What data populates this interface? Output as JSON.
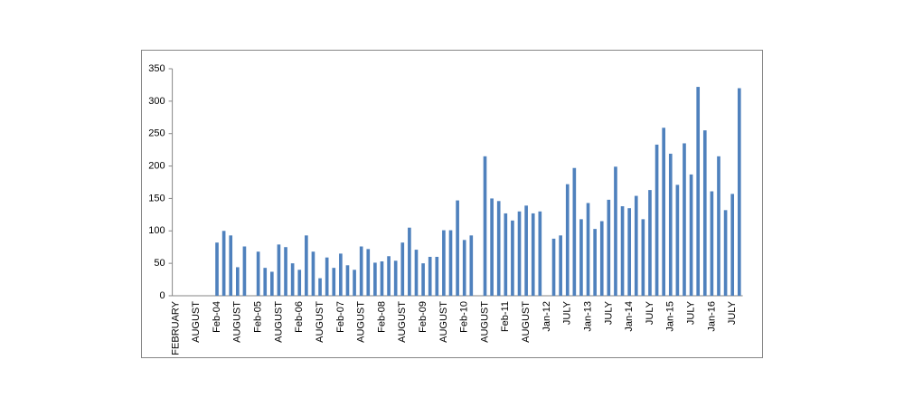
{
  "chart_data": {
    "type": "bar",
    "categories": [
      "FEBRUARY",
      null,
      null,
      "AUGUST",
      null,
      null,
      "Feb-04",
      null,
      null,
      "AUGUST",
      null,
      null,
      "Feb-05",
      null,
      null,
      "AUGUST",
      null,
      null,
      "Feb-06",
      null,
      null,
      "AUGUST",
      null,
      null,
      "Feb-07",
      null,
      null,
      "AUGUST",
      null,
      null,
      "Feb-08",
      null,
      null,
      "AUGUST",
      null,
      null,
      "Feb-09",
      null,
      null,
      "AUGUST",
      null,
      null,
      "Feb-10",
      null,
      null,
      "AUGUST",
      null,
      null,
      "Feb-11",
      null,
      null,
      "AUGUST",
      null,
      null,
      "Jan-12",
      null,
      null,
      "JULY",
      null,
      null,
      "Jan-13",
      null,
      null,
      "JULY",
      null,
      null,
      "Jan-14",
      null,
      null,
      "JULY",
      null,
      null,
      "Jan-15",
      null,
      null,
      "JULY",
      null,
      null,
      "Jan-16",
      null,
      null,
      "JULY",
      null
    ],
    "values": [
      null,
      null,
      null,
      null,
      null,
      null,
      82,
      100,
      93,
      44,
      76,
      null,
      68,
      43,
      37,
      79,
      75,
      50,
      40,
      93,
      68,
      27,
      59,
      43,
      65,
      47,
      40,
      76,
      72,
      51,
      53,
      61,
      54,
      82,
      105,
      71,
      50,
      60,
      60,
      101,
      101,
      147,
      86,
      93,
      null,
      215,
      150,
      146,
      127,
      116,
      130,
      139,
      127,
      130,
      null,
      88,
      93,
      172,
      197,
      118,
      143,
      103,
      115,
      148,
      199,
      138,
      135,
      154,
      118,
      163,
      233,
      259,
      219,
      171,
      235,
      187,
      322,
      255,
      161,
      215,
      132,
      157,
      320
    ],
    "color": "#4f81bd",
    "ylim": [
      0,
      350
    ],
    "yticks": [
      0,
      50,
      100,
      150,
      200,
      250,
      300,
      350
    ],
    "grid": false
  }
}
